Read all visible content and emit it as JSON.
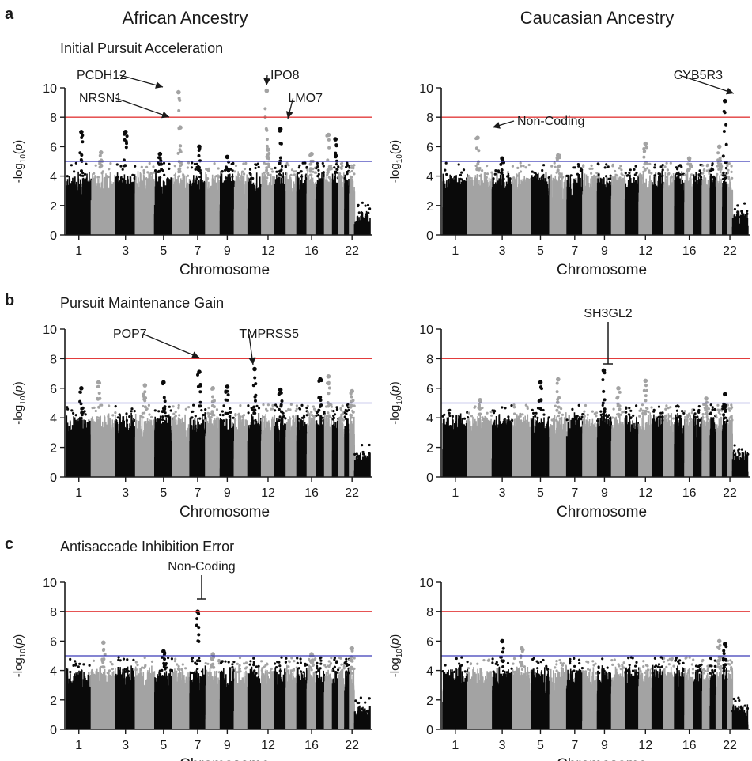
{
  "figure": {
    "panel_labels": [
      "a",
      "b",
      "c"
    ],
    "column_headers": [
      "African Ancestry",
      "Caucasian Ancestry"
    ],
    "row_titles": [
      "Initial Pursuit Acceleration",
      "Pursuit Maintenance Gain",
      "Antisaccade Inhibition Error"
    ]
  },
  "colors": {
    "odd_chromosome": "#0a0a0a",
    "even_chromosome": "#a3a3a3",
    "genome_wide_line": "#e23b3b",
    "suggestive_line": "#3a3ab8"
  },
  "chart_data": [
    {
      "type": "scatter",
      "panel": "a",
      "population": "African Ancestry",
      "xlabel": "Chromosome",
      "ylabel": "-log10(p)",
      "ylim": [
        0,
        10
      ],
      "yticks": [
        0,
        2,
        4,
        6,
        8,
        10
      ],
      "xtick_labels": [
        "1",
        "3",
        "5",
        "7",
        "9",
        "12",
        "16",
        "22"
      ],
      "thresholds": [
        8,
        5
      ],
      "peaks": [
        {
          "chr": 1,
          "pos": 0.6,
          "y": 7.0
        },
        {
          "chr": 2,
          "pos": 0.4,
          "y": 5.6
        },
        {
          "chr": 3,
          "pos": 0.5,
          "y": 7.0
        },
        {
          "chr": 5,
          "pos": 0.3,
          "y": 5.5
        },
        {
          "chr": 6,
          "pos": 0.35,
          "y": 9.7
        },
        {
          "chr": 6,
          "pos": 0.45,
          "y": 7.3
        },
        {
          "chr": 7,
          "pos": 0.6,
          "y": 6.0
        },
        {
          "chr": 9,
          "pos": 0.5,
          "y": 5.3
        },
        {
          "chr": 12,
          "pos": 0.4,
          "y": 9.8
        },
        {
          "chr": 12,
          "pos": 0.5,
          "y": 5.8
        },
        {
          "chr": 13,
          "pos": 0.5,
          "y": 7.2
        },
        {
          "chr": 16,
          "pos": 0.5,
          "y": 5.5
        },
        {
          "chr": 18,
          "pos": 0.5,
          "y": 6.8
        },
        {
          "chr": 19,
          "pos": 0.5,
          "y": 6.5
        }
      ],
      "annotations": [
        {
          "label": "PCDH12",
          "y": 9.7
        },
        {
          "label": "NRSN1",
          "y": 7.3
        },
        {
          "label": "IPO8",
          "y": 9.8
        },
        {
          "label": "LMO7",
          "y": 7.2
        }
      ]
    },
    {
      "type": "scatter",
      "panel": "a",
      "population": "Caucasian Ancestry",
      "xlabel": "Chromosome",
      "ylabel": "-log10(p)",
      "ylim": [
        0,
        10
      ],
      "yticks": [
        0,
        2,
        4,
        6,
        8,
        10
      ],
      "xtick_labels": [
        "1",
        "3",
        "5",
        "7",
        "9",
        "12",
        "16",
        "22"
      ],
      "thresholds": [
        8,
        5
      ],
      "peaks": [
        {
          "chr": 2,
          "pos": 0.4,
          "y": 6.6
        },
        {
          "chr": 3,
          "pos": 0.5,
          "y": 5.2
        },
        {
          "chr": 6,
          "pos": 0.5,
          "y": 5.4
        },
        {
          "chr": 12,
          "pos": 0.5,
          "y": 6.2
        },
        {
          "chr": 16,
          "pos": 0.5,
          "y": 5.2
        },
        {
          "chr": 20,
          "pos": 0.5,
          "y": 6.0
        },
        {
          "chr": 21,
          "pos": 0.5,
          "y": 9.1
        }
      ],
      "annotations": [
        {
          "label": "CYB5R3",
          "y": 9.1
        },
        {
          "label": "Non-Coding",
          "y": 6.6
        }
      ]
    },
    {
      "type": "scatter",
      "panel": "b",
      "population": "African Ancestry",
      "xlabel": "Chromosome",
      "ylabel": "-log10(p)",
      "ylim": [
        0,
        10
      ],
      "yticks": [
        0,
        2,
        4,
        6,
        8,
        10
      ],
      "xtick_labels": [
        "1",
        "3",
        "5",
        "7",
        "9",
        "12",
        "16",
        "22"
      ],
      "thresholds": [
        8,
        5
      ],
      "peaks": [
        {
          "chr": 1,
          "pos": 0.6,
          "y": 6.0
        },
        {
          "chr": 2,
          "pos": 0.3,
          "y": 6.4
        },
        {
          "chr": 4,
          "pos": 0.5,
          "y": 6.2
        },
        {
          "chr": 5,
          "pos": 0.5,
          "y": 6.4
        },
        {
          "chr": 7,
          "pos": 0.6,
          "y": 7.1
        },
        {
          "chr": 8,
          "pos": 0.5,
          "y": 6.0
        },
        {
          "chr": 9,
          "pos": 0.5,
          "y": 6.1
        },
        {
          "chr": 11,
          "pos": 0.5,
          "y": 7.3
        },
        {
          "chr": 13,
          "pos": 0.5,
          "y": 5.9
        },
        {
          "chr": 17,
          "pos": 0.5,
          "y": 6.6
        },
        {
          "chr": 18,
          "pos": 0.5,
          "y": 6.8
        },
        {
          "chr": 22,
          "pos": 0.5,
          "y": 5.8
        }
      ],
      "annotations": [
        {
          "label": "POP7",
          "y": 7.1
        },
        {
          "label": "TMPRSS5",
          "y": 7.3
        }
      ]
    },
    {
      "type": "scatter",
      "panel": "b",
      "population": "Caucasian Ancestry",
      "xlabel": "Chromosome",
      "ylabel": "-log10(p)",
      "ylim": [
        0,
        10
      ],
      "yticks": [
        0,
        2,
        4,
        6,
        8,
        10
      ],
      "xtick_labels": [
        "1",
        "3",
        "5",
        "7",
        "9",
        "12",
        "16",
        "22"
      ],
      "thresholds": [
        8,
        5
      ],
      "peaks": [
        {
          "chr": 2,
          "pos": 0.5,
          "y": 5.2
        },
        {
          "chr": 5,
          "pos": 0.5,
          "y": 6.4
        },
        {
          "chr": 6,
          "pos": 0.5,
          "y": 6.6
        },
        {
          "chr": 9,
          "pos": 0.45,
          "y": 7.2
        },
        {
          "chr": 10,
          "pos": 0.5,
          "y": 6.0
        },
        {
          "chr": 12,
          "pos": 0.5,
          "y": 6.5
        },
        {
          "chr": 18,
          "pos": 0.5,
          "y": 5.3
        },
        {
          "chr": 21,
          "pos": 0.5,
          "y": 5.6
        }
      ],
      "annotations": [
        {
          "label": "SH3GL2",
          "y": 7.2
        }
      ]
    },
    {
      "type": "scatter",
      "panel": "c",
      "population": "African Ancestry",
      "xlabel": "Chromosome",
      "ylabel": "-log10(p)",
      "ylim": [
        0,
        10
      ],
      "yticks": [
        0,
        2,
        4,
        6,
        8,
        10
      ],
      "xtick_labels": [
        "1",
        "3",
        "5",
        "7",
        "9",
        "12",
        "16",
        "22"
      ],
      "thresholds": [
        8,
        5
      ],
      "peaks": [
        {
          "chr": 2,
          "pos": 0.5,
          "y": 5.9
        },
        {
          "chr": 5,
          "pos": 0.5,
          "y": 5.3
        },
        {
          "chr": 7,
          "pos": 0.5,
          "y": 8.0
        },
        {
          "chr": 8,
          "pos": 0.5,
          "y": 5.1
        },
        {
          "chr": 16,
          "pos": 0.5,
          "y": 5.1
        },
        {
          "chr": 22,
          "pos": 0.5,
          "y": 5.5
        }
      ],
      "annotations": [
        {
          "label": "Non-Coding",
          "y": 8.0
        }
      ]
    },
    {
      "type": "scatter",
      "panel": "c",
      "population": "Caucasian Ancestry",
      "xlabel": "Chromosome",
      "ylabel": "-log10(p)",
      "ylim": [
        0,
        10
      ],
      "yticks": [
        0,
        2,
        4,
        6,
        8,
        10
      ],
      "xtick_labels": [
        "1",
        "3",
        "5",
        "7",
        "9",
        "12",
        "16",
        "22"
      ],
      "thresholds": [
        8,
        5
      ],
      "peaks": [
        {
          "chr": 3,
          "pos": 0.5,
          "y": 6.0
        },
        {
          "chr": 4,
          "pos": 0.5,
          "y": 5.5
        },
        {
          "chr": 20,
          "pos": 0.5,
          "y": 6.0
        },
        {
          "chr": 21,
          "pos": 0.5,
          "y": 5.8
        }
      ],
      "annotations": []
    }
  ]
}
